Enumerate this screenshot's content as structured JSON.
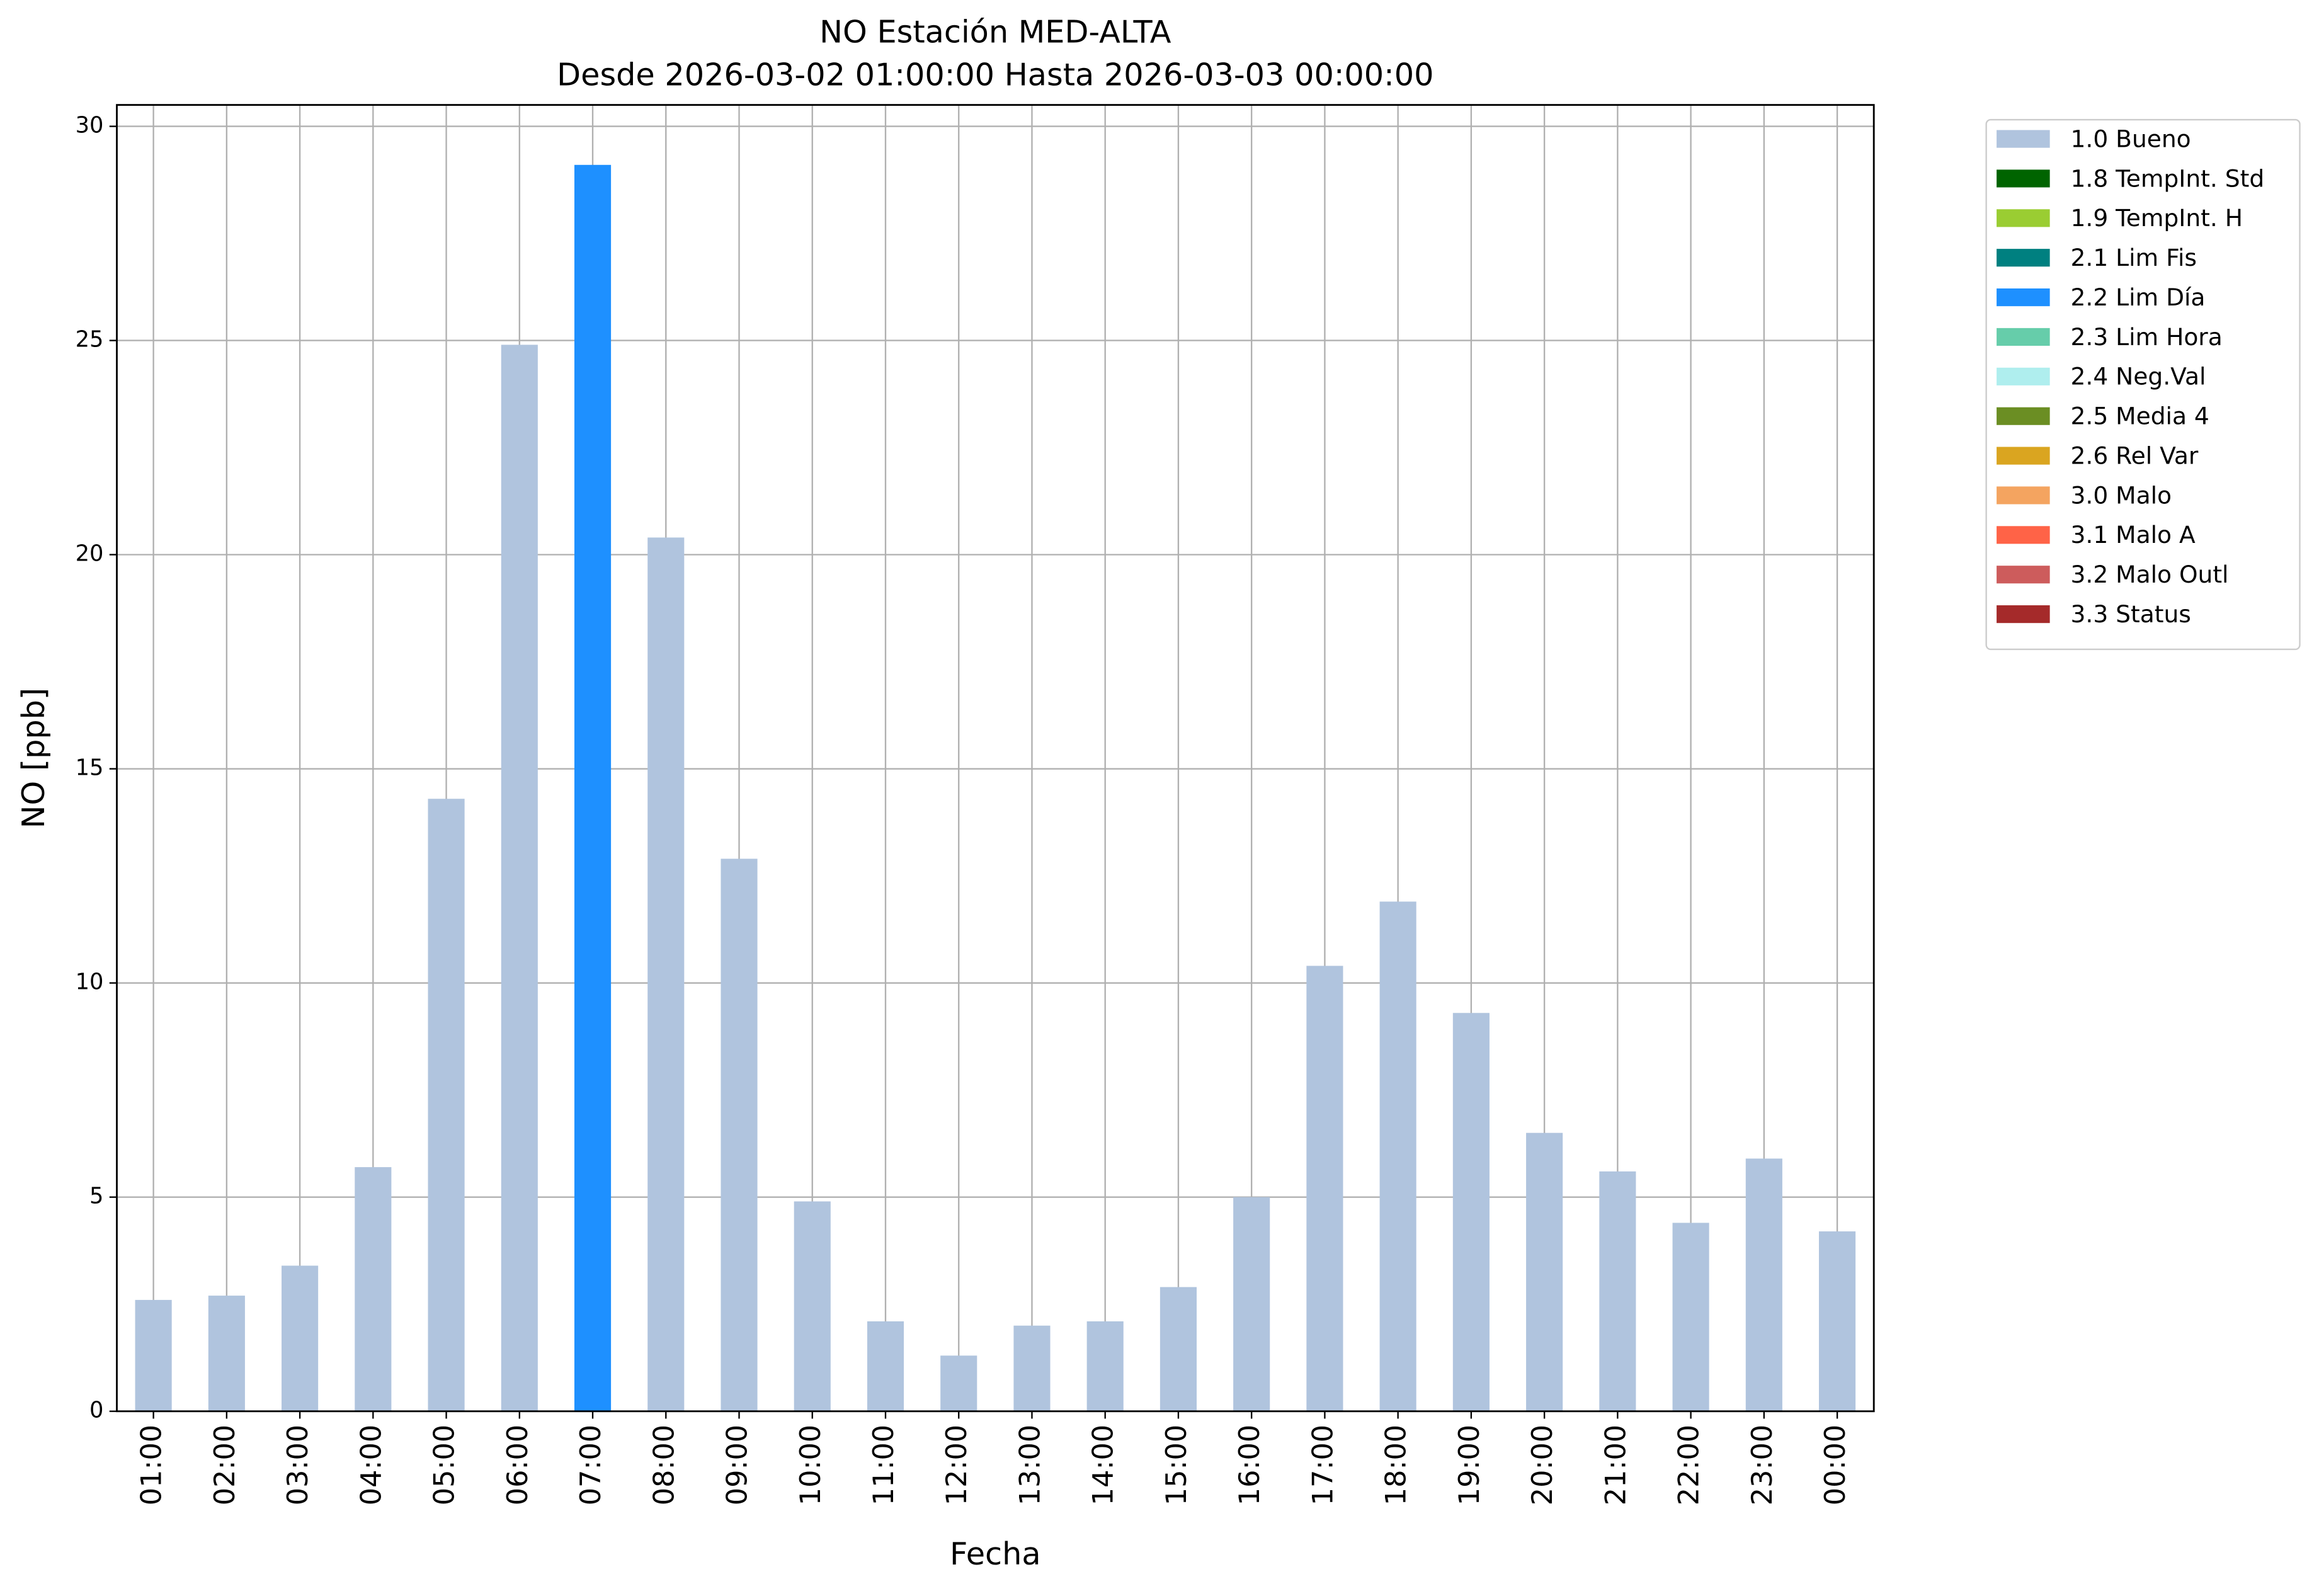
{
  "chart_data": {
    "type": "stacked_bar",
    "title": "NO Estación MED-ALTA",
    "subtitle": "Desde 2026-03-02 01:00:00 Hasta 2026-03-03 00:00:00",
    "x_label": "Fecha",
    "y_label": "NO [ppb]",
    "categories": [
      "01:00",
      "02:00",
      "03:00",
      "04:00",
      "05:00",
      "06:00",
      "07:00",
      "08:00",
      "09:00",
      "10:00",
      "11:00",
      "12:00",
      "13:00",
      "14:00",
      "15:00",
      "16:00",
      "17:00",
      "18:00",
      "19:00",
      "20:00",
      "21:00",
      "22:00",
      "23:00",
      "00:00"
    ],
    "series": [
      {
        "name": "1.0 Bueno",
        "color": "#b0c4de",
        "values": [
          2.6,
          2.7,
          3.4,
          5.7,
          14.3,
          24.9,
          null,
          20.4,
          12.9,
          4.9,
          2.1,
          1.3,
          2.0,
          2.1,
          2.9,
          5.0,
          10.4,
          11.9,
          9.3,
          6.5,
          5.6,
          4.4,
          5.9,
          4.2
        ]
      },
      {
        "name": "1.8 TempInt. Std",
        "color": "#006400",
        "values": [
          null,
          null,
          null,
          null,
          null,
          null,
          null,
          null,
          null,
          null,
          null,
          null,
          null,
          null,
          null,
          null,
          null,
          null,
          null,
          null,
          null,
          null,
          null,
          null
        ]
      },
      {
        "name": "1.9 TempInt. H",
        "color": "#9acd32",
        "values": [
          null,
          null,
          null,
          null,
          null,
          null,
          null,
          null,
          null,
          null,
          null,
          null,
          null,
          null,
          null,
          null,
          null,
          null,
          null,
          null,
          null,
          null,
          null,
          null
        ]
      },
      {
        "name": "2.1 Lim Fis",
        "color": "#008080",
        "values": [
          null,
          null,
          null,
          null,
          null,
          null,
          null,
          null,
          null,
          null,
          null,
          null,
          null,
          null,
          null,
          null,
          null,
          null,
          null,
          null,
          null,
          null,
          null,
          null
        ]
      },
      {
        "name": "2.2 Lim Día",
        "color": "#1e90ff",
        "values": [
          null,
          null,
          null,
          null,
          null,
          null,
          29.1,
          null,
          null,
          null,
          null,
          null,
          null,
          null,
          null,
          null,
          null,
          null,
          null,
          null,
          null,
          null,
          null,
          null
        ]
      },
      {
        "name": "2.3 Lim Hora",
        "color": "#66cdaa",
        "values": [
          null,
          null,
          null,
          null,
          null,
          null,
          null,
          null,
          null,
          null,
          null,
          null,
          null,
          null,
          null,
          null,
          null,
          null,
          null,
          null,
          null,
          null,
          null,
          null
        ]
      },
      {
        "name": "2.4 Neg.Val",
        "color": "#afeeee",
        "values": [
          null,
          null,
          null,
          null,
          null,
          null,
          null,
          null,
          null,
          null,
          null,
          null,
          null,
          null,
          null,
          null,
          null,
          null,
          null,
          null,
          null,
          null,
          null,
          null
        ]
      },
      {
        "name": "2.5 Media 4",
        "color": "#6b8e23",
        "values": [
          null,
          null,
          null,
          null,
          null,
          null,
          null,
          null,
          null,
          null,
          null,
          null,
          null,
          null,
          null,
          null,
          null,
          null,
          null,
          null,
          null,
          null,
          null,
          null
        ]
      },
      {
        "name": "2.6 Rel Var",
        "color": "#daa520",
        "values": [
          null,
          null,
          null,
          null,
          null,
          null,
          null,
          null,
          null,
          null,
          null,
          null,
          null,
          null,
          null,
          null,
          null,
          null,
          null,
          null,
          null,
          null,
          null,
          null
        ]
      },
      {
        "name": "3.0 Malo",
        "color": "#f4a460",
        "values": [
          null,
          null,
          null,
          null,
          null,
          null,
          null,
          null,
          null,
          null,
          null,
          null,
          null,
          null,
          null,
          null,
          null,
          null,
          null,
          null,
          null,
          null,
          null,
          null
        ]
      },
      {
        "name": "3.1 Malo A",
        "color": "#ff6347",
        "values": [
          null,
          null,
          null,
          null,
          null,
          null,
          null,
          null,
          null,
          null,
          null,
          null,
          null,
          null,
          null,
          null,
          null,
          null,
          null,
          null,
          null,
          null,
          null,
          null
        ]
      },
      {
        "name": "3.2 Malo Outl",
        "color": "#cd5c5c",
        "values": [
          null,
          null,
          null,
          null,
          null,
          null,
          null,
          null,
          null,
          null,
          null,
          null,
          null,
          null,
          null,
          null,
          null,
          null,
          null,
          null,
          null,
          null,
          null,
          null
        ]
      },
      {
        "name": "3.3 Status",
        "color": "#a52a2a",
        "values": [
          null,
          null,
          null,
          null,
          null,
          null,
          null,
          null,
          null,
          null,
          null,
          null,
          null,
          null,
          null,
          null,
          null,
          null,
          null,
          null,
          null,
          null,
          null,
          null
        ]
      }
    ],
    "ylim": [
      0,
      30.5
    ],
    "yticks": [
      0,
      5,
      10,
      15,
      20,
      25,
      30
    ],
    "grid": true,
    "legend": "outside-upper-right"
  }
}
